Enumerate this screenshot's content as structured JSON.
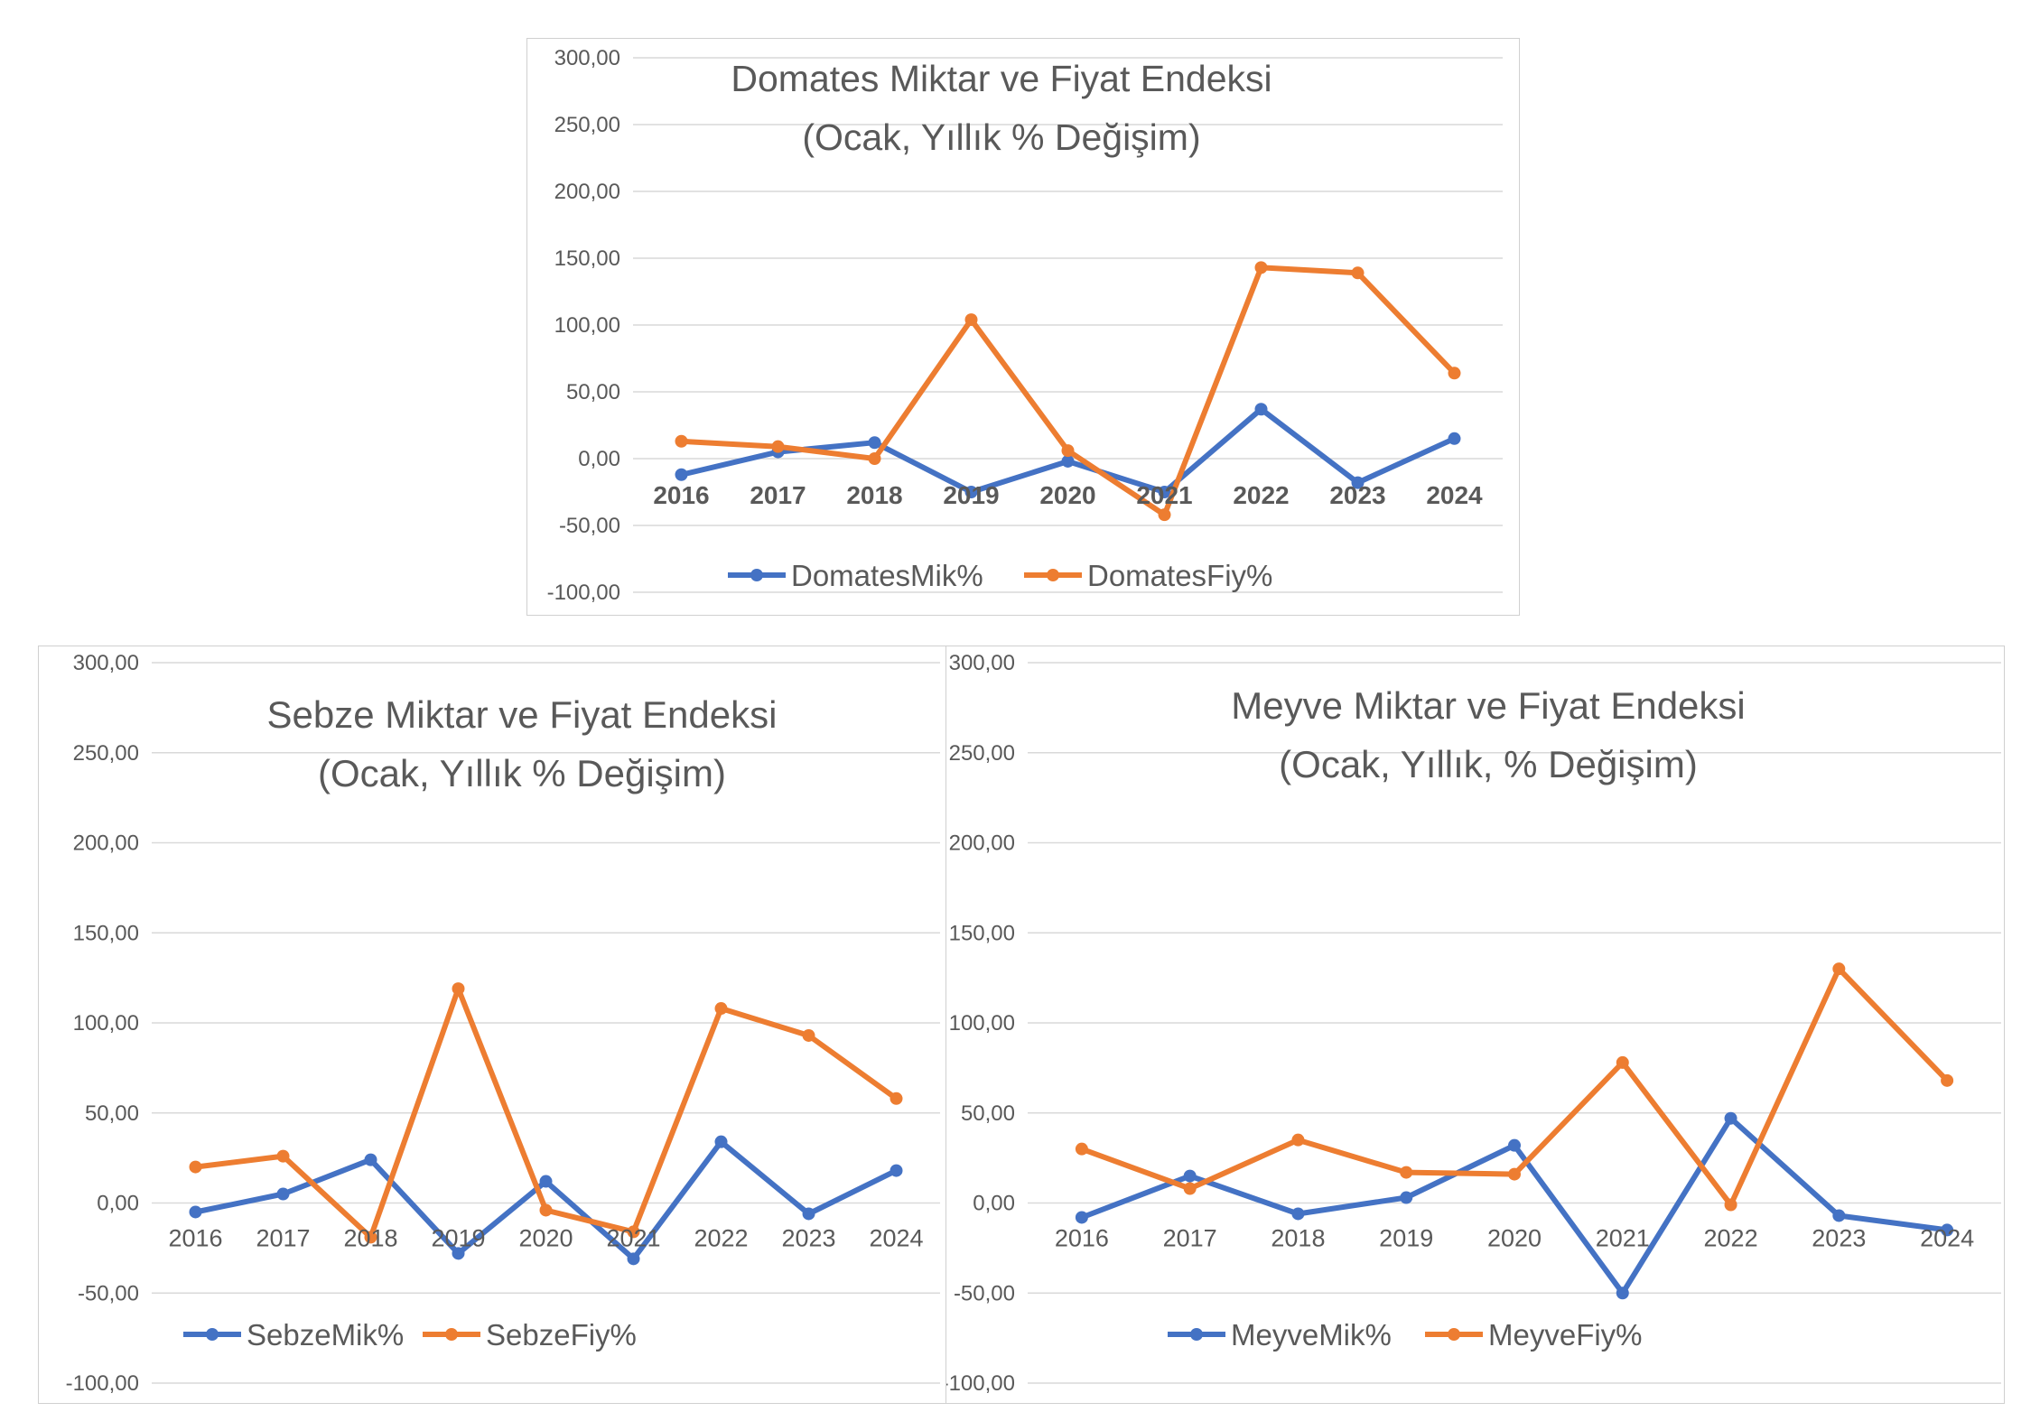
{
  "chart_data": [
    {
      "id": "domates",
      "type": "line",
      "title_lines": [
        "Domates Miktar ve Fiyat Endeksi",
        "(Ocak, Yıllık % Değişim)"
      ],
      "xlabel": "",
      "ylabel": "",
      "ylim": [
        -100,
        300
      ],
      "y_ticks": [
        "300,00",
        "250,00",
        "200,00",
        "150,00",
        "100,00",
        "50,00",
        "0,00",
        "-50,00",
        "-100,00"
      ],
      "categories": [
        "2016",
        "2017",
        "2018",
        "2019",
        "2020",
        "2021",
        "2022",
        "2023",
        "2024"
      ],
      "x_bold": true,
      "grid": true,
      "legend": "bottom",
      "series": [
        {
          "name": "DomatesMik%",
          "color": "#4472C4",
          "values": [
            -12,
            5,
            12,
            -25,
            -2,
            -25,
            37,
            -18,
            15
          ]
        },
        {
          "name": "DomatesFiy%",
          "color": "#ED7D31",
          "values": [
            13,
            9,
            0,
            104,
            6,
            -42,
            143,
            139,
            64
          ]
        }
      ]
    },
    {
      "id": "sebze",
      "type": "line",
      "title_lines": [
        "Sebze Miktar ve Fiyat Endeksi",
        "(Ocak, Yıllık % Değişim)"
      ],
      "xlabel": "",
      "ylabel": "",
      "ylim": [
        -100,
        300
      ],
      "y_ticks": [
        "300,00",
        "250,00",
        "200,00",
        "150,00",
        "100,00",
        "50,00",
        "0,00",
        "-50,00",
        "-100,00"
      ],
      "categories": [
        "2016",
        "2017",
        "2018",
        "2019",
        "2020",
        "2021",
        "2022",
        "2023",
        "2024"
      ],
      "x_bold": false,
      "grid": true,
      "legend": "bottom",
      "series": [
        {
          "name": "SebzeMik%",
          "color": "#4472C4",
          "values": [
            -5,
            5,
            24,
            -28,
            12,
            -31,
            34,
            -6,
            18
          ]
        },
        {
          "name": "SebzeFiy%",
          "color": "#ED7D31",
          "values": [
            20,
            26,
            -19,
            119,
            -4,
            -16,
            108,
            93,
            58
          ]
        }
      ]
    },
    {
      "id": "meyve",
      "type": "line",
      "title_lines": [
        "Meyve Miktar ve Fiyat Endeksi",
        "(Ocak, Yıllık, % Değişim)"
      ],
      "xlabel": "",
      "ylabel": "",
      "ylim": [
        -100,
        300
      ],
      "y_ticks": [
        "300,00",
        "250,00",
        "200,00",
        "150,00",
        "100,00",
        "50,00",
        "0,00",
        "-50,00",
        "-100,00"
      ],
      "categories": [
        "2016",
        "2017",
        "2018",
        "2019",
        "2020",
        "2021",
        "2022",
        "2023",
        "2024"
      ],
      "x_bold": false,
      "grid": true,
      "legend": "bottom",
      "series": [
        {
          "name": "MeyveMik%",
          "color": "#4472C4",
          "values": [
            -8,
            15,
            -6,
            3,
            32,
            -50,
            47,
            -7,
            -15
          ]
        },
        {
          "name": "MeyveFiy%",
          "color": "#ED7D31",
          "values": [
            30,
            8,
            35,
            17,
            16,
            78,
            -1,
            130,
            68
          ]
        }
      ]
    }
  ]
}
